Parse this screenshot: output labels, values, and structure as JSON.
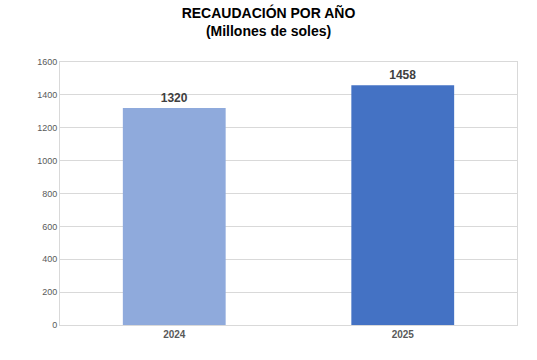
{
  "chart_data": {
    "type": "bar",
    "title": "RECAUDACIÓN POR AÑO",
    "subtitle": "(Millones de soles)",
    "categories": [
      "2024",
      "2025"
    ],
    "values": [
      1320,
      1458
    ],
    "colors": [
      "#8faadc",
      "#4472c4"
    ],
    "ylim": [
      0,
      1600
    ],
    "yticks": [
      0,
      200,
      400,
      600,
      800,
      1000,
      1200,
      1400,
      1600
    ],
    "grid": true,
    "data_labels": true
  }
}
